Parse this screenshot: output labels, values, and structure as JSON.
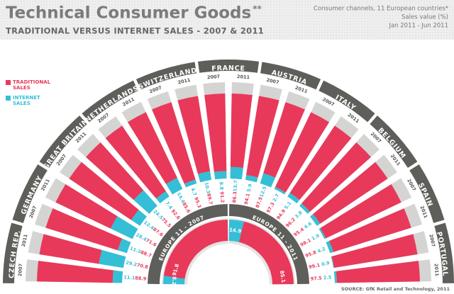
{
  "chart_data": {
    "type": "radial-bar",
    "title": "Technical Consumer Goods",
    "title_mark": "**",
    "subtitle": "TRADITIONAL VERSUS INTERNET SALES - 2007 & 2011",
    "notes": [
      "Consumer channels, 11 European countries*",
      "Sales value (%)",
      "Jan 2011 - Jun 2011"
    ],
    "source": "SOURCE: GfK Retail and Technology, 2011",
    "groups": [
      "CZECH REP.",
      "GERMANY",
      "GREAT BRITAIN",
      "NETHERLANDS",
      "SWITZERLAND",
      "FRANCE",
      "AUSTRIA",
      "ITALY",
      "BELGIUM",
      "SPAIN",
      "PORTUGAL"
    ],
    "categories": [
      "2007",
      "2011",
      "2007",
      "2011",
      "2007",
      "2011",
      "2007",
      "2011",
      "2007",
      "2011",
      "2007",
      "2011",
      "2007",
      "2011",
      "2007",
      "2011",
      "2007",
      "2011",
      "2007",
      "2011",
      "2007",
      "2011"
    ],
    "series": [
      {
        "name": "TRADITIONAL SALES",
        "color": "#e8395a",
        "values": [
          88.9,
          70.8,
          88.7,
          71.6,
          87.6,
          75.5,
          92.6,
          85.6,
          95.3,
          89.7,
          91.2,
          86.3,
          94.1,
          87.5,
          97.3,
          94.9,
          96.2,
          95.4,
          98.1,
          95.8,
          99.1,
          97.5
        ]
      },
      {
        "name": "INTERNET SALES",
        "color": "#35bfd6",
        "values": [
          11.1,
          29.2,
          11.3,
          28.4,
          12.4,
          24.5,
          7.4,
          14.4,
          4.7,
          10.3,
          8.8,
          13.7,
          5.9,
          12.5,
          2.7,
          5.1,
          3.8,
          4.6,
          1.9,
          4.2,
          0.9,
          2.5
        ]
      }
    ],
    "summary": [
      {
        "name": "EUROPE 11 - 2007",
        "traditional": 91.8,
        "internet": 8.2
      },
      {
        "name": "EUROPE 11 - 2011",
        "traditional": 85.1,
        "internet": 14.9
      }
    ]
  }
}
